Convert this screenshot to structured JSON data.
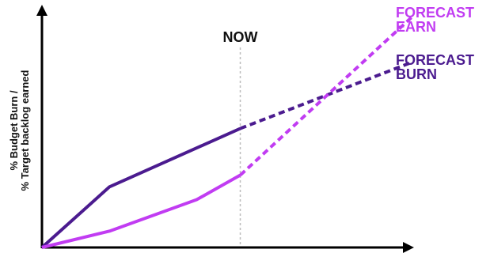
{
  "chart_data": {
    "type": "line",
    "title": "",
    "xlabel": "",
    "ylabel_lines": [
      "% Budget Burn /",
      "% Target backlog earned"
    ],
    "now_label": "NOW",
    "now_x": 4.55,
    "xlim": [
      0,
      8.3
    ],
    "ylim": [
      0,
      10
    ],
    "grid": false,
    "colors": {
      "burn": "#4b1b8f",
      "earn": "#c13cf2",
      "axis": "#000000",
      "now_line": "#bdbdbd",
      "label_dark": "#111111"
    },
    "series": [
      {
        "key": "burn",
        "actual": [
          [
            0,
            0
          ],
          [
            1.55,
            2.6
          ],
          [
            4.55,
            5.1
          ]
        ],
        "forecast": [
          [
            4.55,
            5.1
          ],
          [
            8.5,
            7.95
          ]
        ],
        "label_lines": [
          "FORECAST",
          "BURN"
        ]
      },
      {
        "key": "earn",
        "actual": [
          [
            0,
            0
          ],
          [
            1.55,
            0.7
          ],
          [
            3.55,
            2.05
          ],
          [
            4.55,
            3.1
          ]
        ],
        "forecast": [
          [
            4.55,
            3.1
          ],
          [
            8.5,
            9.9
          ]
        ],
        "label_lines": [
          "FORECAST",
          "EARN"
        ]
      }
    ]
  }
}
